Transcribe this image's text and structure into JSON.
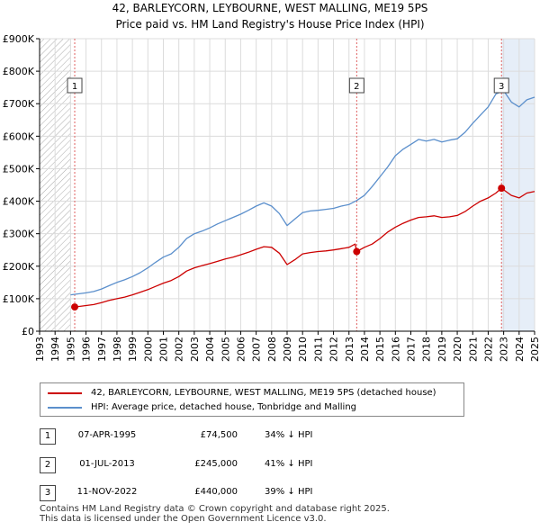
{
  "title_line1": "42, BARLEYCORN, LEYBOURNE, WEST MALLING, ME19 5PS",
  "title_line2": "Price paid vs. HM Land Registry's House Price Index (HPI)",
  "colors": {
    "property": "#cc0000",
    "hpi": "#5b8fcc",
    "marker_line": "#e06060",
    "hatch": "#aaaaaa",
    "grid": "#dcdcdc",
    "band": "#dce7f5"
  },
  "legend": {
    "property": "42, BARLEYCORN, LEYBOURNE, WEST MALLING, ME19 5PS (detached house)",
    "hpi": "HPI: Average price, detached house, Tonbridge and Malling"
  },
  "sales": [
    {
      "num": "1",
      "date": "07-APR-1995",
      "price": "£74,500",
      "hpi": "34% ↓ HPI"
    },
    {
      "num": "2",
      "date": "01-JUL-2013",
      "price": "£245,000",
      "hpi": "41% ↓ HPI"
    },
    {
      "num": "3",
      "date": "11-NOV-2022",
      "price": "£440,000",
      "hpi": "39% ↓ HPI"
    }
  ],
  "footer_line1": "Contains HM Land Registry data © Crown copyright and database right 2025.",
  "footer_line2": "This data is licensed under the Open Government Licence v3.0.",
  "chart_data": {
    "type": "line",
    "title": "42, BARLEYCORN, LEYBOURNE, WEST MALLING, ME19 5PS",
    "subtitle": "Price paid vs. HM Land Registry's House Price Index (HPI)",
    "xlabel": "",
    "ylabel": "",
    "xlim": [
      1993,
      2025
    ],
    "ylim": [
      0,
      900000
    ],
    "x_ticks": [
      "1993",
      "1994",
      "1995",
      "1996",
      "1997",
      "1998",
      "1999",
      "2000",
      "2001",
      "2002",
      "2003",
      "2004",
      "2005",
      "2006",
      "2007",
      "2008",
      "2009",
      "2010",
      "2011",
      "2012",
      "2013",
      "2014",
      "2015",
      "2016",
      "2017",
      "2018",
      "2019",
      "2020",
      "2021",
      "2022",
      "2023",
      "2024",
      "2025"
    ],
    "y_ticks": [
      {
        "value": 0,
        "label": "£0"
      },
      {
        "value": 100000,
        "label": "£100K"
      },
      {
        "value": 200000,
        "label": "£200K"
      },
      {
        "value": 300000,
        "label": "£300K"
      },
      {
        "value": 400000,
        "label": "£400K"
      },
      {
        "value": 500000,
        "label": "£500K"
      },
      {
        "value": 600000,
        "label": "£600K"
      },
      {
        "value": 700000,
        "label": "£700K"
      },
      {
        "value": 800000,
        "label": "£800K"
      },
      {
        "value": 900000,
        "label": "£900K"
      }
    ],
    "series": [
      {
        "name": "HPI: Average price, detached house, Tonbridge and Malling",
        "x": [
          1995.0,
          1995.5,
          1996.0,
          1996.5,
          1997.0,
          1997.5,
          1998.0,
          1998.5,
          1999.0,
          1999.5,
          2000.0,
          2000.5,
          2001.0,
          2001.5,
          2002.0,
          2002.5,
          2003.0,
          2003.5,
          2004.0,
          2004.5,
          2005.0,
          2005.5,
          2006.0,
          2006.5,
          2007.0,
          2007.5,
          2008.0,
          2008.5,
          2009.0,
          2009.5,
          2010.0,
          2010.5,
          2011.0,
          2011.5,
          2012.0,
          2012.5,
          2013.0,
          2013.5,
          2014.0,
          2014.5,
          2015.0,
          2015.5,
          2016.0,
          2016.5,
          2017.0,
          2017.5,
          2018.0,
          2018.5,
          2019.0,
          2019.5,
          2020.0,
          2020.5,
          2021.0,
          2021.5,
          2022.0,
          2022.5,
          2023.0,
          2023.5,
          2024.0,
          2024.5,
          2025.0
        ],
        "values": [
          112000,
          115000,
          118000,
          122000,
          130000,
          140000,
          150000,
          158000,
          168000,
          180000,
          195000,
          212000,
          228000,
          238000,
          258000,
          285000,
          300000,
          308000,
          318000,
          330000,
          340000,
          350000,
          360000,
          372000,
          385000,
          395000,
          385000,
          362000,
          325000,
          345000,
          365000,
          370000,
          372000,
          375000,
          378000,
          385000,
          390000,
          402000,
          418000,
          445000,
          475000,
          505000,
          540000,
          560000,
          575000,
          590000,
          585000,
          590000,
          582000,
          588000,
          592000,
          612000,
          640000,
          665000,
          690000,
          730000,
          740000,
          705000,
          690000,
          712000,
          720000
        ]
      },
      {
        "name": "42, BARLEYCORN, LEYBOURNE, WEST MALLING, ME19 5PS (detached house)",
        "x": [
          1995.27,
          1995.5,
          1996.0,
          1996.5,
          1997.0,
          1997.5,
          1998.0,
          1998.5,
          1999.0,
          1999.5,
          2000.0,
          2000.5,
          2001.0,
          2001.5,
          2002.0,
          2002.5,
          2003.0,
          2003.5,
          2004.0,
          2004.5,
          2005.0,
          2005.5,
          2006.0,
          2006.5,
          2007.0,
          2007.5,
          2008.0,
          2008.5,
          2009.0,
          2009.5,
          2010.0,
          2010.5,
          2011.0,
          2011.5,
          2012.0,
          2012.5,
          2013.0,
          2013.4,
          2013.5,
          2014.0,
          2014.5,
          2015.0,
          2015.5,
          2016.0,
          2016.5,
          2017.0,
          2017.5,
          2018.0,
          2018.5,
          2019.0,
          2019.5,
          2020.0,
          2020.5,
          2021.0,
          2021.5,
          2022.0,
          2022.5,
          2022.86,
          2023.0,
          2023.5,
          2024.0,
          2024.5,
          2025.0
        ],
        "values": [
          74500,
          76000,
          79000,
          82000,
          88000,
          95000,
          100000,
          105000,
          112000,
          120000,
          128000,
          138000,
          148000,
          156000,
          168000,
          185000,
          195000,
          202000,
          208000,
          215000,
          222000,
          228000,
          235000,
          243000,
          252000,
          260000,
          258000,
          240000,
          205000,
          220000,
          238000,
          242000,
          245000,
          247000,
          250000,
          254000,
          258000,
          268000,
          245000,
          258000,
          268000,
          285000,
          305000,
          320000,
          332000,
          342000,
          350000,
          352000,
          355000,
          350000,
          352000,
          356000,
          368000,
          385000,
          400000,
          410000,
          425000,
          440000,
          435000,
          418000,
          410000,
          425000,
          430000
        ]
      }
    ],
    "annotations": [
      {
        "label": "1",
        "x": 1995.27,
        "value": 74500
      },
      {
        "label": "2",
        "x": 2013.5,
        "value": 245000
      },
      {
        "label": "3",
        "x": 2022.86,
        "value": 440000
      }
    ],
    "legend_position": "bottom",
    "grid": true
  }
}
